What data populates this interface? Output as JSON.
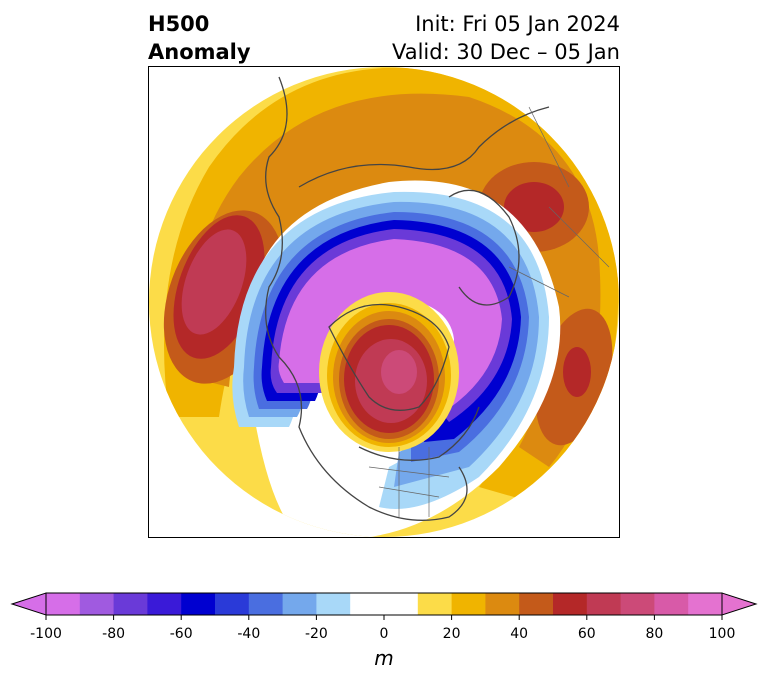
{
  "title": {
    "left_line1": "H500",
    "left_line2": "Anomaly",
    "right_line1": "Init: Fri 05 Jan 2024",
    "right_line2": "Valid: 30 Dec – 05 Jan"
  },
  "colorbar": {
    "unit": "m",
    "min": -100,
    "max": 100,
    "ticks": [
      "-100",
      "-80",
      "-60",
      "-40",
      "-20",
      "0",
      "20",
      "40",
      "60",
      "80",
      "100"
    ],
    "colors": [
      "#d66ee8",
      "#a05ae0",
      "#6a3ad8",
      "#3a1ad8",
      "#0000d0",
      "#2a3ad8",
      "#4a6ee0",
      "#74a8ec",
      "#a8d8f8",
      "#ffffff",
      "#ffffff",
      "#fcdc48",
      "#f0b400",
      "#dc8a10",
      "#c45a1a",
      "#b42828",
      "#c03a54",
      "#cc4a78",
      "#d85aa8",
      "#e472d0"
    ],
    "extend": "both"
  }
}
